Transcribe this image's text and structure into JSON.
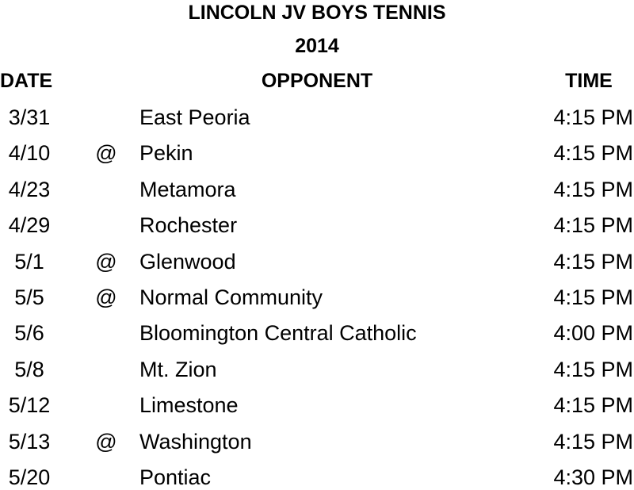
{
  "title": "LINCOLN JV BOYS TENNIS",
  "year": "2014",
  "headers": {
    "date": "DATE",
    "opponent": "OPPONENT",
    "time": "TIME"
  },
  "rows": [
    {
      "date": "3/31",
      "away": "",
      "opponent": "East Peoria",
      "time": "4:15 PM"
    },
    {
      "date": "4/10",
      "away": "@",
      "opponent": "Pekin",
      "time": "4:15 PM"
    },
    {
      "date": "4/23",
      "away": "",
      "opponent": "Metamora",
      "time": "4:15 PM"
    },
    {
      "date": "4/29",
      "away": "",
      "opponent": "Rochester",
      "time": "4:15 PM"
    },
    {
      "date": "5/1",
      "away": "@",
      "opponent": "Glenwood",
      "time": "4:15 PM"
    },
    {
      "date": "5/5",
      "away": "@",
      "opponent": "Normal Community",
      "time": "4:15 PM"
    },
    {
      "date": "5/6",
      "away": "",
      "opponent": "Bloomington Central Catholic",
      "time": "4:00 PM"
    },
    {
      "date": "5/8",
      "away": "",
      "opponent": "Mt. Zion",
      "time": "4:15 PM"
    },
    {
      "date": "5/12",
      "away": "",
      "opponent": "Limestone",
      "time": "4:15 PM"
    },
    {
      "date": "5/13",
      "away": "@",
      "opponent": "Washington",
      "time": "4:15 PM"
    },
    {
      "date": "5/20",
      "away": "",
      "opponent": "Pontiac",
      "time": "4:30 PM"
    }
  ]
}
